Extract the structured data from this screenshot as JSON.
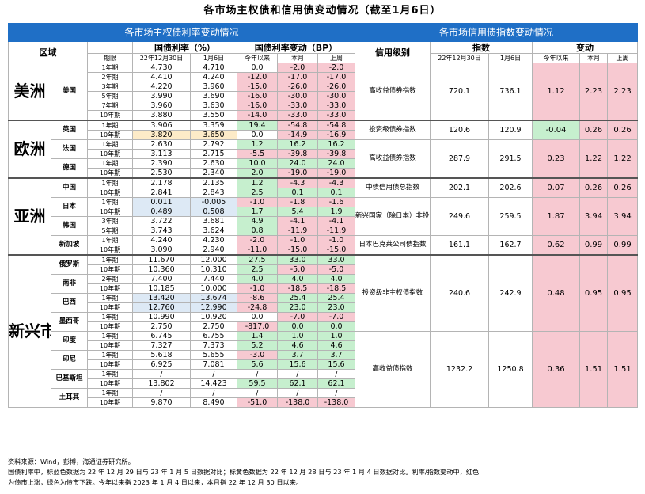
{
  "title": "各市场主权债和信用债变动情况（截至1月6日）",
  "left_section_title": "各市场主权债利率变动情况",
  "right_section_title": "各市场信用债指数变动情况",
  "headers": {
    "region": "区域",
    "yield": "国债利率（%）",
    "yield_change": "国债利率变动（BP）",
    "term": "期限",
    "date1": "22年12月30日",
    "date2": "1月6日",
    "ytd": "今年以来",
    "mtd": "本月",
    "wtd": "上周",
    "credit_level": "信用级别",
    "index": "指数",
    "change": "变动"
  },
  "sovereign_rows": [
    {
      "region": "美洲",
      "country": "美国",
      "term": "1年期",
      "y1": "4.730",
      "y2": "4.710",
      "ytd": "0.0",
      "mtd": "-2.0",
      "wtd": "-2.0",
      "c": [
        "",
        "",
        "",
        "",
        "pink",
        "pink"
      ]
    },
    {
      "term": "2年期",
      "y1": "4.410",
      "y2": "4.240",
      "ytd": "-12.0",
      "mtd": "-17.0",
      "wtd": "-17.0",
      "c": [
        "",
        "",
        "",
        "pink",
        "pink",
        "pink"
      ]
    },
    {
      "term": "3年期",
      "y1": "4.220",
      "y2": "3.960",
      "ytd": "-15.0",
      "mtd": "-26.0",
      "wtd": "-26.0",
      "c": [
        "",
        "",
        "",
        "pink",
        "pink",
        "pink"
      ]
    },
    {
      "term": "5年期",
      "y1": "3.990",
      "y2": "3.690",
      "ytd": "-16.0",
      "mtd": "-30.0",
      "wtd": "-30.0",
      "c": [
        "",
        "",
        "",
        "pink",
        "pink",
        "pink"
      ]
    },
    {
      "term": "7年期",
      "y1": "3.960",
      "y2": "3.630",
      "ytd": "-16.0",
      "mtd": "-33.0",
      "wtd": "-33.0",
      "c": [
        "",
        "",
        "",
        "pink",
        "pink",
        "pink"
      ]
    },
    {
      "term": "10年期",
      "y1": "3.880",
      "y2": "3.550",
      "ytd": "-14.0",
      "mtd": "-33.0",
      "wtd": "-33.0",
      "c": [
        "",
        "",
        "",
        "pink",
        "pink",
        "pink"
      ]
    },
    {
      "region": "欧洲",
      "country": "英国",
      "term": "1年期",
      "y1": "3.906",
      "y2": "3.359",
      "ytd": "19.4",
      "mtd": "-54.8",
      "wtd": "-54.8",
      "c": [
        "",
        "",
        "",
        "green",
        "pink",
        "pink"
      ]
    },
    {
      "term": "10年期",
      "y1": "3.820",
      "y2": "3.650",
      "ytd": "0.0",
      "mtd": "-14.9",
      "wtd": "-16.9",
      "c": [
        "",
        "yellow",
        "yellow",
        "",
        "pink",
        "pink"
      ]
    },
    {
      "country": "法国",
      "term": "1年期",
      "y1": "2.630",
      "y2": "2.792",
      "ytd": "1.2",
      "mtd": "16.2",
      "wtd": "16.2",
      "c": [
        "",
        "",
        "",
        "green",
        "green",
        "green"
      ]
    },
    {
      "term": "10年期",
      "y1": "3.113",
      "y2": "2.715",
      "ytd": "-5.5",
      "mtd": "-39.8",
      "wtd": "-39.8",
      "c": [
        "",
        "",
        "",
        "pink",
        "pink",
        "pink"
      ]
    },
    {
      "country": "德国",
      "term": "1年期",
      "y1": "2.390",
      "y2": "2.630",
      "ytd": "10.0",
      "mtd": "24.0",
      "wtd": "24.0",
      "c": [
        "",
        "",
        "",
        "green",
        "green",
        "green"
      ]
    },
    {
      "term": "10年期",
      "y1": "2.530",
      "y2": "2.340",
      "ytd": "2.0",
      "mtd": "-19.0",
      "wtd": "-19.0",
      "c": [
        "",
        "",
        "",
        "green",
        "pink",
        "pink"
      ]
    },
    {
      "region": "亚洲",
      "country": "中国",
      "term": "1年期",
      "y1": "2.178",
      "y2": "2.135",
      "ytd": "1.2",
      "mtd": "-4.3",
      "wtd": "-4.3",
      "c": [
        "",
        "",
        "",
        "green",
        "pink",
        "pink"
      ]
    },
    {
      "term": "10年期",
      "y1": "2.841",
      "y2": "2.843",
      "ytd": "2.5",
      "mtd": "0.1",
      "wtd": "0.1",
      "c": [
        "",
        "",
        "",
        "green",
        "green",
        "green"
      ]
    },
    {
      "country": "日本",
      "term": "1年期",
      "y1": "0.011",
      "y2": "-0.005",
      "ytd": "-1.0",
      "mtd": "-1.8",
      "wtd": "-1.6",
      "c": [
        "",
        "lblue",
        "lblue",
        "pink",
        "pink",
        "pink"
      ]
    },
    {
      "term": "10年期",
      "y1": "0.489",
      "y2": "0.508",
      "ytd": "1.7",
      "mtd": "5.4",
      "wtd": "1.9",
      "c": [
        "",
        "lblue",
        "lblue",
        "green",
        "green",
        "green"
      ]
    },
    {
      "country": "韩国",
      "term": "3年期",
      "y1": "3.722",
      "y2": "3.681",
      "ytd": "4.9",
      "mtd": "-4.1",
      "wtd": "-4.1",
      "c": [
        "",
        "",
        "",
        "green",
        "pink",
        "pink"
      ]
    },
    {
      "term": "5年期",
      "y1": "3.743",
      "y2": "3.624",
      "ytd": "0.8",
      "mtd": "-11.9",
      "wtd": "-11.9",
      "c": [
        "",
        "",
        "",
        "green",
        "pink",
        "pink"
      ]
    },
    {
      "country": "新加坡",
      "term": "1年期",
      "y1": "4.240",
      "y2": "4.230",
      "ytd": "-2.0",
      "mtd": "-1.0",
      "wtd": "-1.0",
      "c": [
        "",
        "",
        "",
        "pink",
        "pink",
        "pink"
      ]
    },
    {
      "term": "10年期",
      "y1": "3.090",
      "y2": "2.940",
      "ytd": "-11.0",
      "mtd": "-15.0",
      "wtd": "-15.0",
      "c": [
        "",
        "",
        "",
        "pink",
        "pink",
        "pink"
      ]
    },
    {
      "region": "新兴市场",
      "country": "俄罗斯",
      "term": "1年期",
      "y1": "11.670",
      "y2": "12.000",
      "ytd": "27.5",
      "mtd": "33.0",
      "wtd": "33.0",
      "c": [
        "",
        "",
        "",
        "green",
        "green",
        "green"
      ]
    },
    {
      "term": "10年期",
      "y1": "10.360",
      "y2": "10.310",
      "ytd": "2.5",
      "mtd": "-5.0",
      "wtd": "-5.0",
      "c": [
        "",
        "",
        "",
        "green",
        "pink",
        "pink"
      ]
    },
    {
      "country": "南非",
      "term": "2年期",
      "y1": "7.400",
      "y2": "7.440",
      "ytd": "4.0",
      "mtd": "4.0",
      "wtd": "4.0",
      "c": [
        "",
        "",
        "",
        "green",
        "green",
        "green"
      ]
    },
    {
      "term": "10年期",
      "y1": "10.185",
      "y2": "10.000",
      "ytd": "-1.0",
      "mtd": "-18.5",
      "wtd": "-18.5",
      "c": [
        "",
        "",
        "",
        "pink",
        "pink",
        "pink"
      ]
    },
    {
      "country": "巴西",
      "term": "1年期",
      "y1": "13.420",
      "y2": "13.674",
      "ytd": "-8.6",
      "mtd": "25.4",
      "wtd": "25.4",
      "c": [
        "",
        "lblue",
        "lblue",
        "pink",
        "green",
        "green"
      ]
    },
    {
      "term": "10年期",
      "y1": "12.760",
      "y2": "12.990",
      "ytd": "-24.8",
      "mtd": "23.0",
      "wtd": "23.0",
      "c": [
        "",
        "lblue",
        "lblue",
        "pink",
        "green",
        "green"
      ]
    },
    {
      "country": "墨西哥",
      "term": "1年期",
      "y1": "10.990",
      "y2": "10.920",
      "ytd": "0.0",
      "mtd": "-7.0",
      "wtd": "-7.0",
      "c": [
        "",
        "",
        "",
        "",
        "pink",
        "pink"
      ]
    },
    {
      "term": "10年期",
      "y1": "2.750",
      "y2": "2.750",
      "ytd": "-817.0",
      "mtd": "0.0",
      "wtd": "0.0",
      "c": [
        "",
        "",
        "",
        "pink",
        "green",
        "green"
      ]
    },
    {
      "country": "印度",
      "term": "1年期",
      "y1": "6.745",
      "y2": "6.755",
      "ytd": "1.4",
      "mtd": "1.0",
      "wtd": "1.0",
      "c": [
        "",
        "",
        "",
        "green",
        "green",
        "green"
      ]
    },
    {
      "term": "10年期",
      "y1": "7.327",
      "y2": "7.373",
      "ytd": "5.2",
      "mtd": "4.6",
      "wtd": "4.6",
      "c": [
        "",
        "",
        "",
        "green",
        "green",
        "green"
      ]
    },
    {
      "country": "印尼",
      "term": "1年期",
      "y1": "5.618",
      "y2": "5.655",
      "ytd": "-3.0",
      "mtd": "3.7",
      "wtd": "3.7",
      "c": [
        "",
        "",
        "",
        "pink",
        "green",
        "green"
      ]
    },
    {
      "term": "10年期",
      "y1": "6.925",
      "y2": "7.081",
      "ytd": "5.6",
      "mtd": "15.6",
      "wtd": "15.6",
      "c": [
        "",
        "",
        "",
        "green",
        "green",
        "green"
      ]
    },
    {
      "country": "巴基斯坦",
      "term": "1年期",
      "y1": "/",
      "y2": "/",
      "ytd": "/",
      "mtd": "/",
      "wtd": "/",
      "c": [
        "",
        "",
        "",
        "",
        "",
        ""
      ]
    },
    {
      "term": "10年期",
      "y1": "13.802",
      "y2": "14.423",
      "ytd": "59.5",
      "mtd": "62.1",
      "wtd": "62.1",
      "c": [
        "",
        "",
        "",
        "green",
        "green",
        "green"
      ]
    },
    {
      "country": "土耳其",
      "term": "1年期",
      "y1": "/",
      "y2": "/",
      "ytd": "/",
      "mtd": "/",
      "wtd": "/",
      "c": [
        "",
        "",
        "",
        "",
        "",
        ""
      ]
    },
    {
      "term": "10年期",
      "y1": "9.870",
      "y2": "8.490",
      "ytd": "-51.0",
      "mtd": "-138.0",
      "wtd": "-138.0",
      "c": [
        "",
        "",
        "",
        "pink",
        "pink",
        "pink"
      ]
    }
  ],
  "credit_rows": [
    {
      "name": "高收益债券指数",
      "v1": "720.1",
      "v2": "736.1",
      "ytd": "1.12",
      "mtd": "2.23",
      "wtd": "2.23",
      "c": "pink"
    },
    {
      "name": "投资级债券指数",
      "v1": "120.6",
      "v2": "120.9",
      "ytd": "-0.04",
      "mtd": "0.26",
      "wtd": "0.26",
      "c": "green"
    },
    {
      "name": "高收益债券指数",
      "v1": "287.9",
      "v2": "291.5",
      "ytd": "0.23",
      "mtd": "1.22",
      "wtd": "1.22",
      "c": "pink"
    },
    {
      "name": "中债信用债总指数",
      "v1": "202.1",
      "v2": "202.6",
      "ytd": "0.07",
      "mtd": "0.26",
      "wtd": "0.26",
      "c": "pink"
    },
    {
      "name": "新兴国家（除日本）非投资级指数",
      "v1": "249.6",
      "v2": "259.5",
      "ytd": "1.87",
      "mtd": "3.94",
      "wtd": "3.94",
      "c": "pink"
    },
    {
      "name": "日本巴克莱公司债指数",
      "v1": "161.1",
      "v2": "162.7",
      "ytd": "0.62",
      "mtd": "0.99",
      "wtd": "0.99",
      "c": "pink"
    },
    {
      "name": "投资级非主权债指数",
      "v1": "240.6",
      "v2": "242.9",
      "ytd": "0.48",
      "mtd": "0.95",
      "wtd": "0.95",
      "c": "pink"
    },
    {
      "name": "高收益债指数",
      "v1": "1232.2",
      "v2": "1250.8",
      "ytd": "0.36",
      "mtd": "1.51",
      "wtd": "1.51",
      "c": "pink"
    }
  ],
  "notes": [
    "资料来源：Wind，彭博，海通证券研究所。",
    "国债利率中，标蓝色数据为 22 年 12 月 29 日与 23 年 1 月 5 日数据对比；标黄色数据为 22 年 12 月 28 日与 23 年 1 月 4 日数据对比。利率/指数变动中，红色",
    "为债市上涨，绿色为债市下跌。今年以来指 2023 年 1 月 4 日以来，本月指 22 年 12 月 30 日以来。"
  ]
}
